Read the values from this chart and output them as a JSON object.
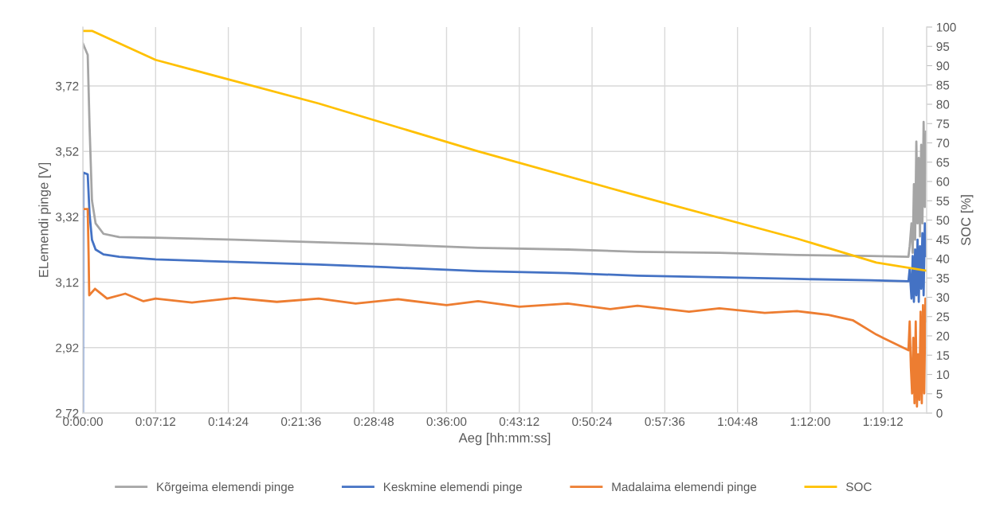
{
  "chart_data": {
    "type": "line",
    "xlabel": "Aeg [hh:mm:ss]",
    "ylabel": "ELemendi pinge [V]",
    "y2label": "SOC [%]",
    "xlim": [
      0,
      1.392
    ],
    "ylim": [
      2.72,
      3.9
    ],
    "y2lim": [
      0,
      100
    ],
    "xticks": [
      {
        "value": 0,
        "label": "0:00:00"
      },
      {
        "value": 0.12,
        "label": "0:07:12"
      },
      {
        "value": 0.24,
        "label": "0:14:24"
      },
      {
        "value": 0.36,
        "label": "0:21:36"
      },
      {
        "value": 0.48,
        "label": "0:28:48"
      },
      {
        "value": 0.6,
        "label": "0:36:00"
      },
      {
        "value": 0.72,
        "label": "0:43:12"
      },
      {
        "value": 0.84,
        "label": "0:50:24"
      },
      {
        "value": 0.96,
        "label": "0:57:36"
      },
      {
        "value": 1.08,
        "label": "1:04:48"
      },
      {
        "value": 1.2,
        "label": "1:12:00"
      },
      {
        "value": 1.32,
        "label": "1:19:12"
      }
    ],
    "yticks": [
      {
        "value": 2.72,
        "label": "2,72"
      },
      {
        "value": 2.92,
        "label": "2,92"
      },
      {
        "value": 3.12,
        "label": "3,12"
      },
      {
        "value": 3.32,
        "label": "3,32"
      },
      {
        "value": 3.52,
        "label": "3,52"
      },
      {
        "value": 3.72,
        "label": "3,72"
      }
    ],
    "y2ticks": [
      0,
      5,
      10,
      15,
      20,
      25,
      30,
      35,
      40,
      45,
      50,
      55,
      60,
      65,
      70,
      75,
      80,
      85,
      90,
      95,
      100
    ],
    "grid": true,
    "legend": "bottom",
    "marker": "none",
    "line_style": "solid",
    "series": [
      {
        "name": "Kõrgeima elemendi pinge",
        "color": "#a5a5a5",
        "x": [
          0,
          0.008,
          0.011,
          0.015,
          0.021,
          0.034,
          0.06,
          0.12,
          0.25,
          0.389,
          0.5,
          0.652,
          0.8,
          0.915,
          1.05,
          1.178,
          1.3,
          1.362,
          1.364,
          1.367,
          1.369,
          1.371,
          1.373,
          1.375,
          1.377,
          1.379,
          1.381,
          1.383,
          1.385,
          1.387,
          1.389,
          1.391
        ],
        "values": [
          3.85,
          3.815,
          3.6,
          3.37,
          3.3,
          3.268,
          3.258,
          3.256,
          3.25,
          3.242,
          3.236,
          3.225,
          3.22,
          3.213,
          3.21,
          3.203,
          3.2,
          3.198,
          3.23,
          3.3,
          3.21,
          3.42,
          3.25,
          3.55,
          3.3,
          3.5,
          3.26,
          3.54,
          3.3,
          3.61,
          3.35,
          3.58
        ]
      },
      {
        "name": "Keskmine elemendi pinge",
        "color": "#4472c4",
        "x": [
          0,
          0.0005,
          0.008,
          0.011,
          0.015,
          0.021,
          0.034,
          0.06,
          0.12,
          0.25,
          0.389,
          0.5,
          0.652,
          0.8,
          0.915,
          1.05,
          1.178,
          1.3,
          1.362,
          1.364,
          1.367,
          1.369,
          1.371,
          1.373,
          1.375,
          1.377,
          1.379,
          1.381,
          1.383,
          1.385,
          1.387,
          1.389,
          1.391
        ],
        "values": [
          2.72,
          3.455,
          3.45,
          3.33,
          3.25,
          3.22,
          3.205,
          3.198,
          3.19,
          3.182,
          3.174,
          3.166,
          3.154,
          3.148,
          3.14,
          3.135,
          3.13,
          3.126,
          3.123,
          3.16,
          3.07,
          3.2,
          3.06,
          3.22,
          3.08,
          3.25,
          3.06,
          3.23,
          3.1,
          3.27,
          3.08,
          3.3,
          3.2
        ]
      },
      {
        "name": "Madalaima elemendi pinge",
        "color": "#ed7d31",
        "x": [
          0,
          0.008,
          0.0095,
          0.0105,
          0.02,
          0.04,
          0.07,
          0.1,
          0.12,
          0.18,
          0.25,
          0.32,
          0.389,
          0.45,
          0.52,
          0.6,
          0.652,
          0.72,
          0.8,
          0.87,
          0.915,
          1.0,
          1.05,
          1.125,
          1.178,
          1.23,
          1.27,
          1.309,
          1.322,
          1.362,
          1.364,
          1.366,
          1.368,
          1.37,
          1.372,
          1.374,
          1.376,
          1.378,
          1.38,
          1.382,
          1.384,
          1.386,
          1.388,
          1.39,
          1.391
        ],
        "values": [
          3.344,
          3.344,
          3.2,
          3.08,
          3.1,
          3.07,
          3.085,
          3.062,
          3.07,
          3.058,
          3.072,
          3.06,
          3.07,
          3.055,
          3.068,
          3.05,
          3.062,
          3.045,
          3.055,
          3.038,
          3.048,
          3.03,
          3.04,
          3.026,
          3.032,
          3.02,
          3.004,
          2.96,
          2.948,
          2.912,
          3.0,
          2.86,
          2.78,
          2.95,
          2.75,
          3.0,
          2.74,
          2.9,
          2.76,
          3.03,
          2.75,
          3.05,
          2.78,
          3.07,
          3.0
        ]
      },
      {
        "name": "SOC",
        "color": "#ffc000",
        "axis": "y2",
        "x": [
          0,
          0.015,
          0.12,
          0.389,
          0.652,
          0.915,
          1.178,
          1.309,
          1.391
        ],
        "values": [
          99,
          99,
          91.5,
          80.2,
          67.8,
          56.3,
          45.2,
          39,
          36.9
        ]
      }
    ]
  }
}
